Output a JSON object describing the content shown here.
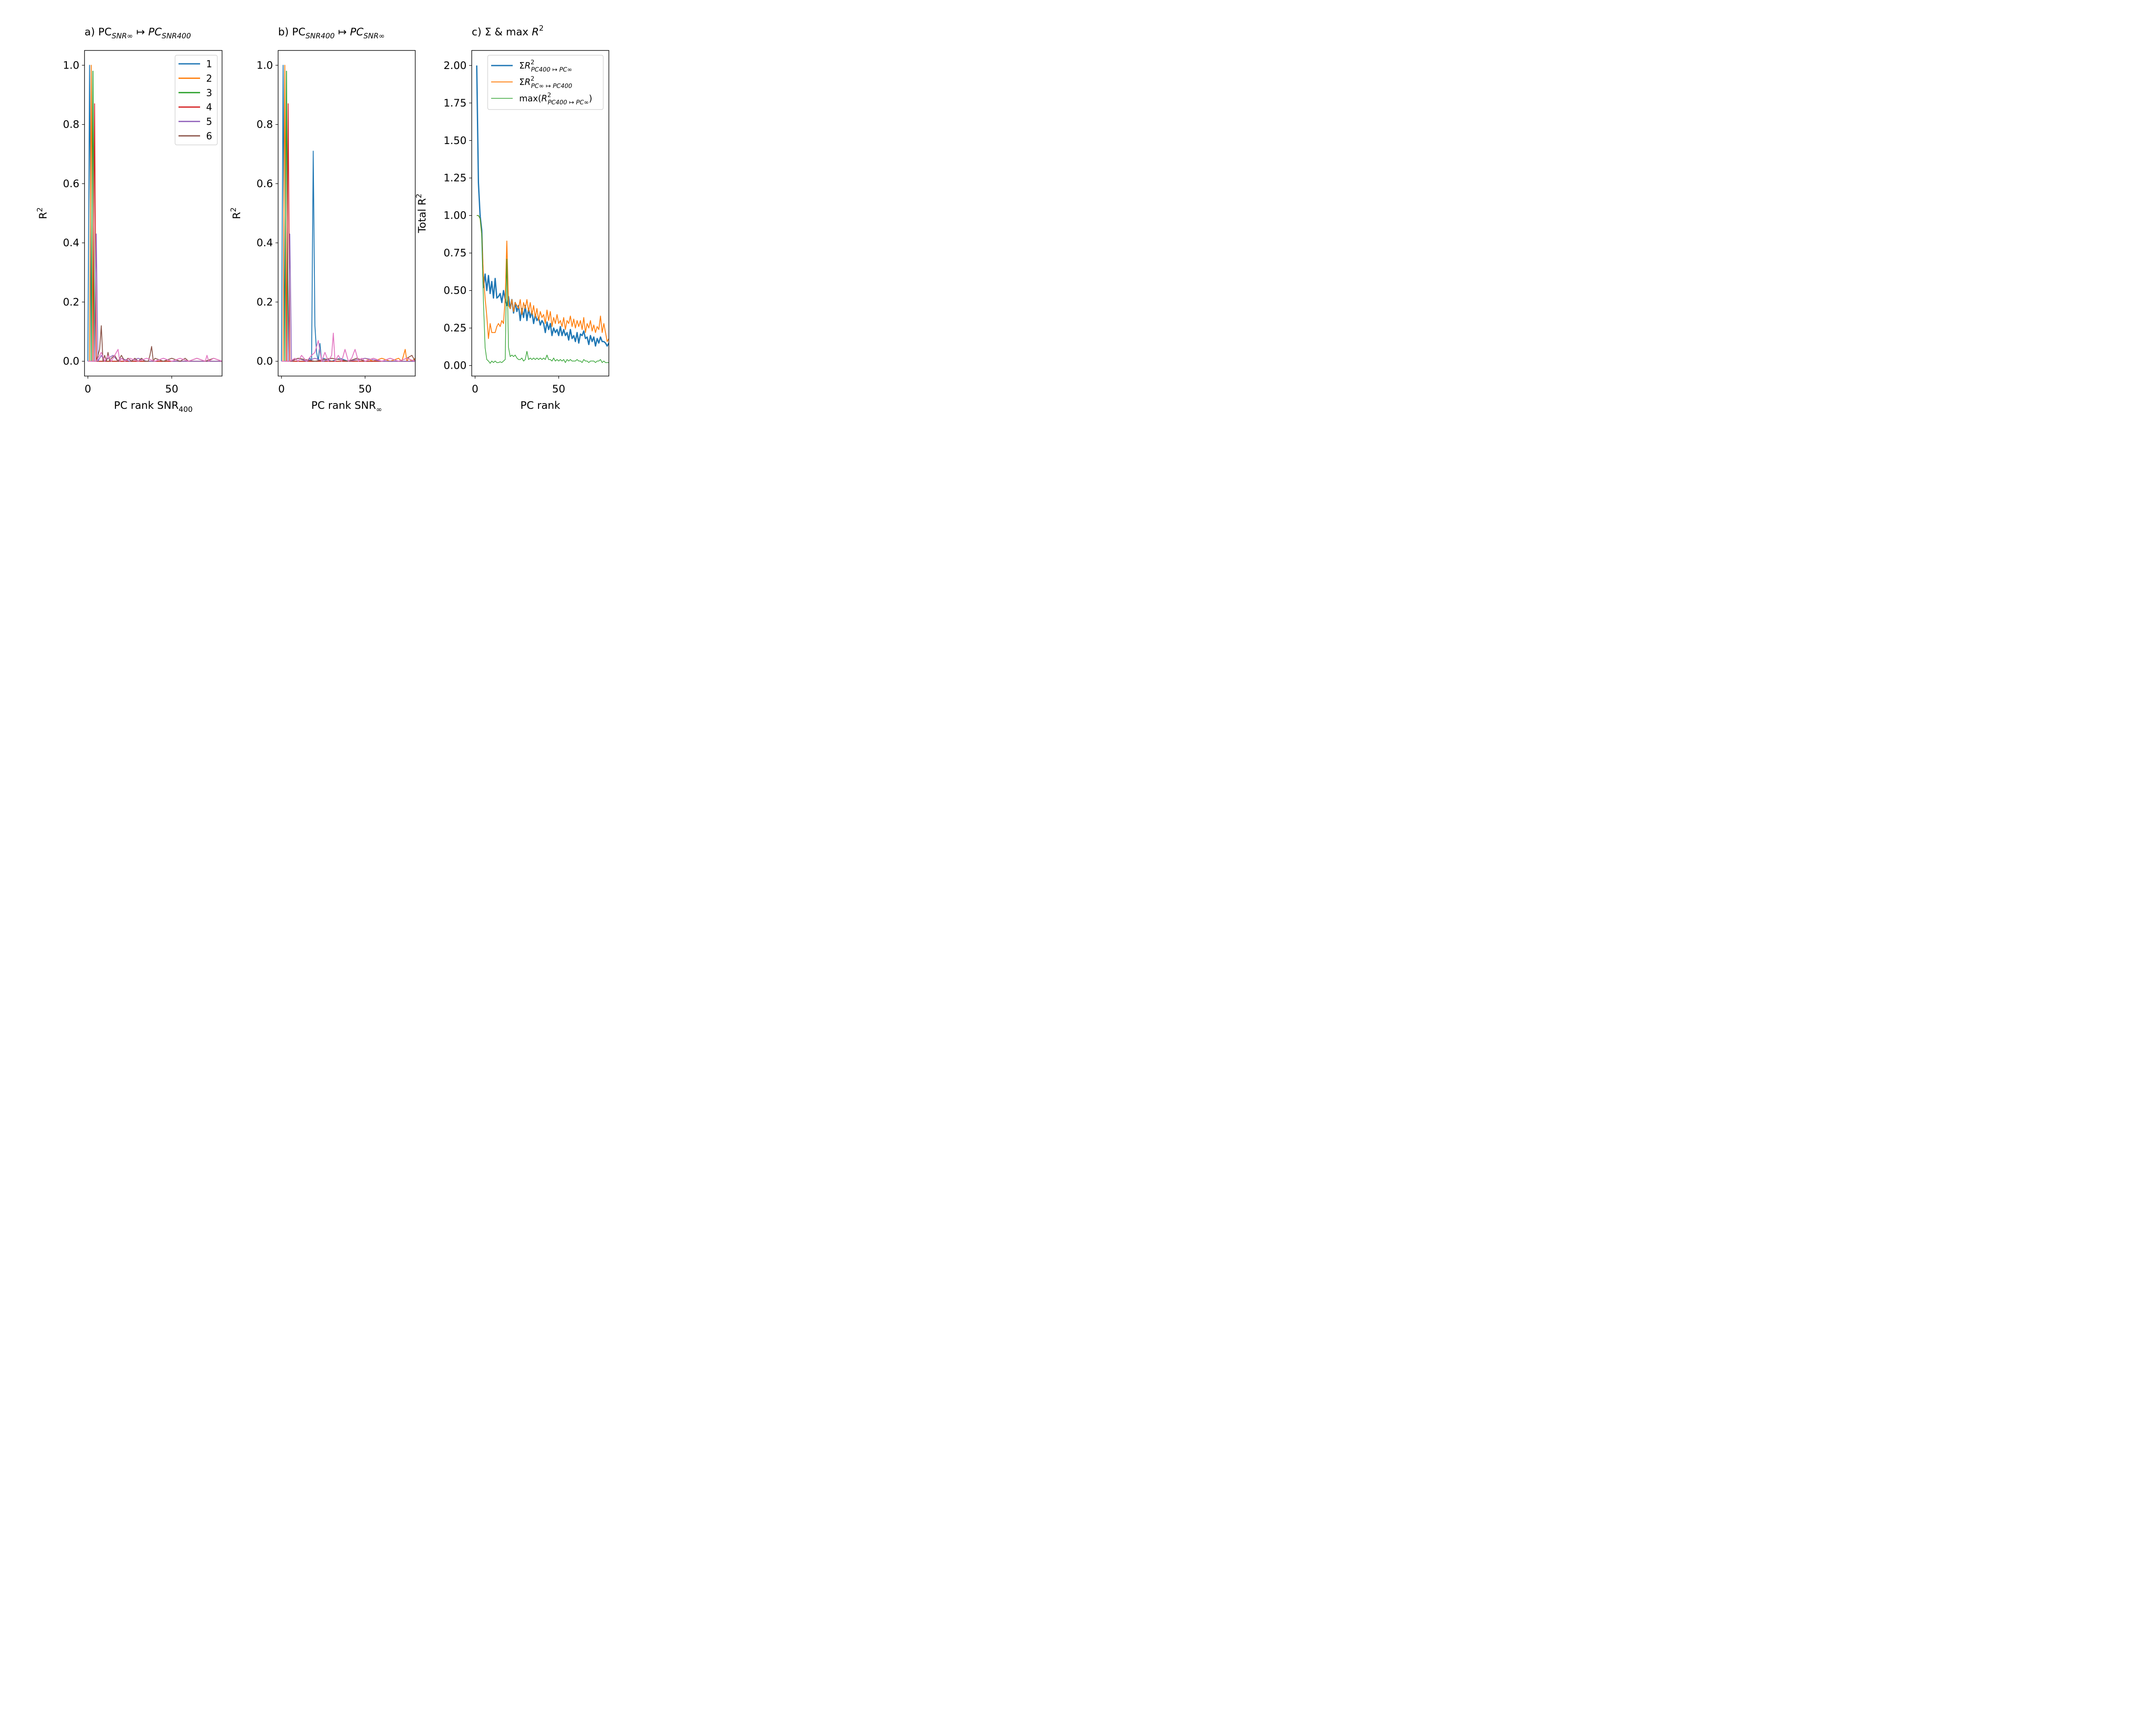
{
  "chart_data": [
    {
      "type": "line",
      "title": "a) PC",
      "title_sub": "SNR∞",
      "title_arrow": "↦",
      "title_main": "PC",
      "title_main_sub": "SNR400",
      "xlabel": "PC rank SNR",
      "xlabel_sub": "400",
      "ylabel": "R",
      "ylabel_sup": "2",
      "xlim": [
        -2,
        80
      ],
      "ylim": [
        -0.05,
        1.05
      ],
      "xticks": [
        0,
        50
      ],
      "yticks": [
        0.0,
        0.2,
        0.4,
        0.6,
        0.8,
        1.0
      ],
      "legend": "top-right",
      "series": [
        {
          "name": "1",
          "color": "#1f77b4",
          "x": [
            0,
            1,
            2,
            80
          ],
          "y": [
            0.0,
            1.0,
            0.0,
            0.0
          ]
        },
        {
          "name": "2",
          "color": "#ff7f0e",
          "x": [
            1,
            2,
            3,
            80
          ],
          "y": [
            0.0,
            1.0,
            0.0,
            0.0
          ]
        },
        {
          "name": "3",
          "color": "#2ca02c",
          "x": [
            2,
            3,
            4,
            80
          ],
          "y": [
            0.0,
            0.98,
            0.0,
            0.0
          ]
        },
        {
          "name": "4",
          "color": "#d62728",
          "x": [
            3,
            4,
            5,
            80
          ],
          "y": [
            0.0,
            0.87,
            0.0,
            0.0
          ]
        },
        {
          "name": "5",
          "color": "#9467bd",
          "x": [
            4,
            5,
            6,
            8,
            10,
            12,
            15,
            18,
            20,
            25,
            30,
            35,
            40,
            45,
            50,
            55,
            60,
            65,
            70,
            75,
            80
          ],
          "y": [
            0.0,
            0.43,
            0.0,
            0.02,
            0.0,
            0.01,
            0.02,
            0.0,
            0.01,
            0.0,
            0.01,
            0.0,
            0.0,
            0.01,
            0.0,
            0.0,
            0.0,
            0.0,
            0.0,
            0.0,
            0.0
          ]
        },
        {
          "name": "6",
          "color": "#8c564b",
          "x": [
            5,
            6,
            7,
            8,
            9,
            10,
            11,
            12,
            13,
            14,
            16,
            18,
            20,
            22,
            24,
            26,
            28,
            30,
            32,
            34,
            36,
            37,
            38,
            39,
            40,
            45,
            50,
            55,
            58,
            60,
            65,
            70,
            75,
            80
          ],
          "y": [
            0.0,
            0.02,
            0.04,
            0.12,
            0.0,
            0.02,
            0.0,
            0.03,
            0.0,
            0.01,
            0.02,
            0.0,
            0.02,
            0.0,
            0.01,
            0.0,
            0.01,
            0.0,
            0.01,
            0.0,
            0.0,
            0.02,
            0.05,
            0.0,
            0.01,
            0.0,
            0.01,
            0.0,
            0.01,
            0.0,
            0.01,
            0.0,
            0.01,
            0.0
          ]
        },
        {
          "name": "",
          "color": "#e377c2",
          "x": [
            0,
            5,
            8,
            10,
            12,
            14,
            16,
            18,
            19,
            20,
            22,
            25,
            30,
            35,
            40,
            45,
            50,
            55,
            60,
            65,
            70,
            71,
            72,
            75,
            80
          ],
          "y": [
            0.0,
            0.0,
            0.03,
            0.0,
            0.02,
            0.0,
            0.02,
            0.04,
            0.0,
            0.01,
            0.0,
            0.01,
            0.0,
            0.01,
            0.0,
            0.01,
            0.0,
            0.01,
            0.0,
            0.01,
            0.0,
            0.02,
            0.0,
            0.01,
            0.0
          ]
        }
      ]
    },
    {
      "type": "line",
      "title": "b) PC",
      "title_sub": "SNR400",
      "title_arrow": "↦",
      "title_main": "PC",
      "title_main_sub": "SNR∞",
      "xlabel": "PC rank SNR",
      "xlabel_sub": "∞",
      "ylabel": "R",
      "ylabel_sup": "2",
      "xlim": [
        -2,
        80
      ],
      "ylim": [
        -0.05,
        1.05
      ],
      "xticks": [
        0,
        50
      ],
      "yticks": [
        0.0,
        0.2,
        0.4,
        0.6,
        0.8,
        1.0
      ],
      "series": [
        {
          "name": "1",
          "color": "#1f77b4",
          "x": [
            0,
            1,
            2,
            5,
            10,
            15,
            17,
            18,
            19,
            20,
            21,
            22,
            23,
            24,
            25,
            30,
            35,
            40,
            45,
            50,
            60,
            70,
            80
          ],
          "y": [
            0.0,
            1.0,
            0.0,
            0.0,
            0.01,
            0.0,
            0.01,
            0.0,
            0.71,
            0.12,
            0.03,
            0.0,
            0.06,
            0.0,
            0.01,
            0.0,
            0.01,
            0.0,
            0.01,
            0.0,
            0.0,
            0.0,
            0.0
          ]
        },
        {
          "name": "2",
          "color": "#ff7f0e",
          "x": [
            1,
            2,
            3,
            10,
            20,
            30,
            40,
            50,
            55,
            60,
            65,
            70,
            72,
            73,
            74,
            75,
            76,
            78,
            80
          ],
          "y": [
            0.0,
            1.0,
            0.0,
            0.0,
            0.0,
            0.01,
            0.0,
            0.01,
            0.0,
            0.01,
            0.0,
            0.01,
            0.0,
            0.02,
            0.04,
            0.0,
            0.01,
            0.0,
            0.01
          ]
        },
        {
          "name": "3",
          "color": "#2ca02c",
          "x": [
            2,
            3,
            4,
            80
          ],
          "y": [
            0.0,
            0.98,
            0.0,
            0.0
          ]
        },
        {
          "name": "4",
          "color": "#d62728",
          "x": [
            3,
            4,
            5,
            80
          ],
          "y": [
            0.0,
            0.87,
            0.0,
            0.0
          ]
        },
        {
          "name": "5",
          "color": "#9467bd",
          "x": [
            4,
            5,
            6,
            10,
            15,
            20,
            25,
            30,
            40,
            50,
            60,
            70,
            80
          ],
          "y": [
            0.0,
            0.43,
            0.0,
            0.01,
            0.0,
            0.01,
            0.0,
            0.01,
            0.0,
            0.01,
            0.0,
            0.0,
            0.0
          ]
        },
        {
          "name": "6",
          "color": "#8c564b",
          "x": [
            5,
            10,
            20,
            30,
            40,
            45,
            50,
            55,
            60,
            65,
            70,
            75,
            78,
            80
          ],
          "y": [
            0.0,
            0.01,
            0.0,
            0.01,
            0.0,
            0.01,
            0.0,
            0.01,
            0.0,
            0.01,
            0.0,
            0.01,
            0.02,
            0.0
          ]
        },
        {
          "name": "",
          "color": "#e377c2",
          "x": [
            0,
            5,
            8,
            10,
            12,
            15,
            18,
            20,
            22,
            24,
            26,
            28,
            30,
            31,
            32,
            34,
            36,
            38,
            40,
            42,
            44,
            46,
            48,
            50,
            55,
            60,
            65,
            70,
            75,
            80
          ],
          "y": [
            0.0,
            0.0,
            0.01,
            0.0,
            0.02,
            0.0,
            0.02,
            0.03,
            0.07,
            0.0,
            0.03,
            0.0,
            0.02,
            0.095,
            0.0,
            0.02,
            0.0,
            0.04,
            0.0,
            0.01,
            0.04,
            0.0,
            0.01,
            0.0,
            0.01,
            0.0,
            0.01,
            0.0,
            0.01,
            0.0
          ]
        }
      ]
    },
    {
      "type": "line",
      "title": "c) Σ & max ",
      "title_italic": "R",
      "title_sup": "2",
      "xlabel": "PC rank",
      "ylabel": "Total R",
      "ylabel_sup": "2",
      "xlim": [
        -2,
        80
      ],
      "ylim": [
        -0.07,
        2.1
      ],
      "xticks": [
        0,
        50
      ],
      "yticks": [
        0.0,
        0.25,
        0.5,
        0.75,
        1.0,
        1.25,
        1.5,
        1.75,
        2.0
      ],
      "legend": "top-right",
      "series": [
        {
          "name": "ΣR²PC400↦PC∞",
          "color": "#1f77b4",
          "width": 3,
          "x": [
            1,
            2,
            3,
            4,
            5,
            6,
            7,
            8,
            9,
            10,
            11,
            12,
            13,
            14,
            15,
            16,
            17,
            18,
            19,
            20,
            21,
            22,
            23,
            24,
            25,
            26,
            27,
            28,
            29,
            30,
            31,
            32,
            33,
            34,
            35,
            36,
            37,
            38,
            39,
            40,
            41,
            42,
            43,
            44,
            45,
            46,
            47,
            48,
            49,
            50,
            51,
            52,
            53,
            54,
            55,
            56,
            57,
            58,
            59,
            60,
            61,
            62,
            63,
            64,
            65,
            66,
            67,
            68,
            69,
            70,
            71,
            72,
            73,
            74,
            75,
            76,
            77,
            78,
            79,
            80
          ],
          "y": [
            2.0,
            1.22,
            1.0,
            0.9,
            0.52,
            0.61,
            0.5,
            0.6,
            0.48,
            0.56,
            0.45,
            0.58,
            0.45,
            0.46,
            0.48,
            0.42,
            0.5,
            0.44,
            0.4,
            0.46,
            0.38,
            0.44,
            0.35,
            0.42,
            0.36,
            0.4,
            0.3,
            0.38,
            0.32,
            0.4,
            0.3,
            0.38,
            0.32,
            0.36,
            0.28,
            0.34,
            0.3,
            0.32,
            0.27,
            0.3,
            0.28,
            0.22,
            0.29,
            0.24,
            0.28,
            0.2,
            0.25,
            0.22,
            0.24,
            0.2,
            0.26,
            0.2,
            0.24,
            0.2,
            0.22,
            0.17,
            0.24,
            0.18,
            0.2,
            0.16,
            0.22,
            0.15,
            0.21,
            0.2,
            0.23,
            0.18,
            0.19,
            0.14,
            0.2,
            0.16,
            0.19,
            0.13,
            0.18,
            0.15,
            0.19,
            0.16,
            0.16,
            0.15,
            0.13,
            0.15
          ]
        },
        {
          "name": "ΣR²PC∞↦PC400",
          "color": "#ff7f0e",
          "width": 2,
          "x": [
            1,
            2,
            3,
            4,
            5,
            6,
            7,
            8,
            9,
            10,
            11,
            12,
            13,
            14,
            15,
            16,
            17,
            18,
            19,
            20,
            21,
            22,
            23,
            24,
            25,
            26,
            27,
            28,
            29,
            30,
            31,
            32,
            33,
            34,
            35,
            36,
            37,
            38,
            39,
            40,
            41,
            42,
            43,
            44,
            45,
            46,
            47,
            48,
            49,
            50,
            51,
            52,
            53,
            54,
            55,
            56,
            57,
            58,
            59,
            60,
            61,
            62,
            63,
            64,
            65,
            66,
            67,
            68,
            69,
            70,
            71,
            72,
            73,
            74,
            75,
            76,
            77,
            78,
            79,
            80
          ],
          "y": [
            1.0,
            1.0,
            0.98,
            0.87,
            0.6,
            0.45,
            0.33,
            0.18,
            0.28,
            0.22,
            0.22,
            0.22,
            0.26,
            0.28,
            0.26,
            0.3,
            0.28,
            0.45,
            0.83,
            0.4,
            0.38,
            0.44,
            0.36,
            0.42,
            0.4,
            0.38,
            0.44,
            0.34,
            0.42,
            0.38,
            0.44,
            0.36,
            0.42,
            0.34,
            0.4,
            0.32,
            0.38,
            0.3,
            0.36,
            0.32,
            0.34,
            0.28,
            0.37,
            0.3,
            0.36,
            0.26,
            0.32,
            0.28,
            0.34,
            0.28,
            0.3,
            0.26,
            0.32,
            0.24,
            0.3,
            0.28,
            0.33,
            0.26,
            0.31,
            0.25,
            0.3,
            0.26,
            0.3,
            0.24,
            0.32,
            0.22,
            0.28,
            0.25,
            0.3,
            0.23,
            0.27,
            0.22,
            0.26,
            0.24,
            0.33,
            0.22,
            0.28,
            0.22,
            0.16,
            0.18
          ]
        },
        {
          "name": "max(R²PC400↦PC∞)",
          "color": "#2ca02c",
          "width": 1.5,
          "x": [
            1,
            2,
            3,
            4,
            5,
            6,
            7,
            8,
            9,
            10,
            11,
            12,
            13,
            14,
            15,
            16,
            17,
            18,
            19,
            20,
            21,
            22,
            23,
            24,
            25,
            26,
            27,
            28,
            29,
            30,
            31,
            32,
            33,
            34,
            35,
            36,
            37,
            38,
            39,
            40,
            41,
            42,
            43,
            44,
            45,
            46,
            47,
            48,
            49,
            50,
            51,
            52,
            53,
            54,
            55,
            56,
            57,
            58,
            59,
            60,
            61,
            62,
            63,
            64,
            65,
            66,
            67,
            68,
            69,
            70,
            71,
            72,
            73,
            74,
            75,
            76,
            77,
            78,
            79,
            80
          ],
          "y": [
            1.0,
            1.0,
            0.98,
            0.87,
            0.43,
            0.12,
            0.04,
            0.03,
            0.015,
            0.03,
            0.02,
            0.03,
            0.02,
            0.02,
            0.025,
            0.02,
            0.03,
            0.04,
            0.71,
            0.12,
            0.06,
            0.07,
            0.06,
            0.07,
            0.05,
            0.04,
            0.04,
            0.05,
            0.03,
            0.04,
            0.095,
            0.04,
            0.05,
            0.04,
            0.05,
            0.04,
            0.05,
            0.04,
            0.05,
            0.04,
            0.05,
            0.04,
            0.07,
            0.04,
            0.04,
            0.03,
            0.05,
            0.03,
            0.04,
            0.03,
            0.04,
            0.03,
            0.04,
            0.02,
            0.04,
            0.03,
            0.04,
            0.03,
            0.03,
            0.03,
            0.04,
            0.03,
            0.03,
            0.02,
            0.04,
            0.03,
            0.03,
            0.02,
            0.03,
            0.03,
            0.03,
            0.02,
            0.03,
            0.03,
            0.04,
            0.02,
            0.03,
            0.02,
            0.02,
            0.02
          ]
        }
      ]
    }
  ]
}
